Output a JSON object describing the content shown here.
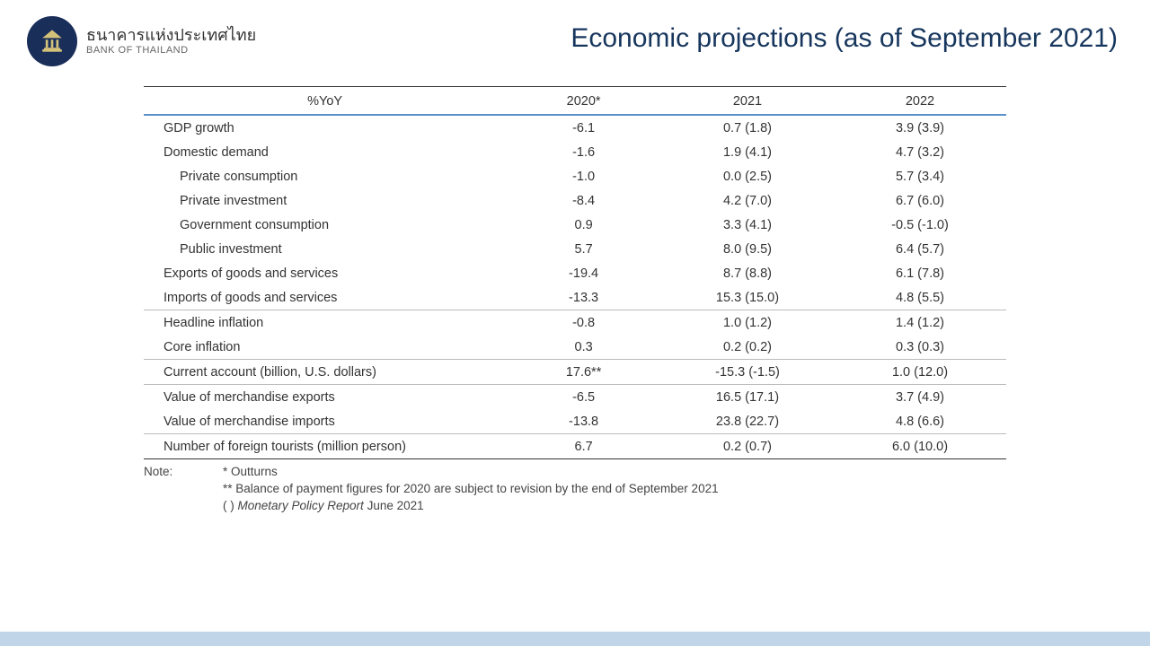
{
  "header": {
    "bank_th": "ธนาคารแห่งประเทศไทย",
    "bank_en": "BANK OF THAILAND",
    "title": "Economic projections (as of September 2021)"
  },
  "table": {
    "columns": [
      "%YoY",
      "2020*",
      "2021",
      "2022"
    ],
    "col_widths_pct": [
      42,
      18,
      20,
      20
    ],
    "header_top_border": "#333333",
    "header_accent_border": "#5a8fc7",
    "row_border": "#bbbbbb",
    "fontsize": 14.5,
    "rows": [
      {
        "label": "GDP growth",
        "indent": 1,
        "c2020": "-6.1",
        "c2021": "0.7  (1.8)",
        "c2022": "3.9  (3.9)",
        "border": false
      },
      {
        "label": "Domestic demand",
        "indent": 1,
        "c2020": "-1.6",
        "c2021": "1.9  (4.1)",
        "c2022": "4.7  (3.2)",
        "border": false
      },
      {
        "label": "Private consumption",
        "indent": 2,
        "c2020": "-1.0",
        "c2021": "0.0  (2.5)",
        "c2022": "5.7  (3.4)",
        "border": false
      },
      {
        "label": "Private investment",
        "indent": 2,
        "c2020": "-8.4",
        "c2021": "4.2  (7.0)",
        "c2022": "6.7  (6.0)",
        "border": false
      },
      {
        "label": "Government consumption",
        "indent": 2,
        "c2020": "0.9",
        "c2021": "3.3  (4.1)",
        "c2022": "-0.5  (-1.0)",
        "border": false
      },
      {
        "label": "Public investment",
        "indent": 2,
        "c2020": "5.7",
        "c2021": "8.0  (9.5)",
        "c2022": "6.4  (5.7)",
        "border": false
      },
      {
        "label": "Exports of goods and services",
        "indent": 1,
        "c2020": "-19.4",
        "c2021": "8.7  (8.8)",
        "c2022": "6.1  (7.8)",
        "border": false
      },
      {
        "label": "Imports of goods and services",
        "indent": 1,
        "c2020": "-13.3",
        "c2021": "15.3  (15.0)",
        "c2022": "4.8  (5.5)",
        "border": true
      },
      {
        "label": "Headline inflation",
        "indent": 1,
        "c2020": "-0.8",
        "c2021": "1.0 (1.2)",
        "c2022": "1.4 (1.2)",
        "border": false
      },
      {
        "label": "Core inflation",
        "indent": 1,
        "c2020": "0.3",
        "c2021": "0.2 (0.2)",
        "c2022": "0.3 (0.3)",
        "border": true
      },
      {
        "label": "Current account (billion, U.S. dollars)",
        "indent": 1,
        "c2020": "17.6**",
        "c2021": "-15.3  (-1.5)",
        "c2022": "1.0 (12.0)",
        "border": true
      },
      {
        "label": "Value of merchandise exports",
        "indent": 1,
        "c2020": "-6.5",
        "c2021": "16.5  (17.1)",
        "c2022": "3.7  (4.9)",
        "border": false
      },
      {
        "label": "Value of merchandise imports",
        "indent": 1,
        "c2020": "-13.8",
        "c2021": "23.8  (22.7)",
        "c2022": "4.8  (6.6)",
        "border": true
      },
      {
        "label": "Number of foreign tourists (million person)",
        "indent": 1,
        "c2020": "6.7",
        "c2021": "0.2  (0.7)",
        "c2022": "6.0  (10.0)",
        "border": "last"
      }
    ]
  },
  "notes": {
    "label": "Note:",
    "lines": [
      "* Outturns",
      "** Balance of payment figures for 2020 are subject to revision by the end of September 2021",
      "( ) Monetary Policy Report June 2021"
    ]
  },
  "colors": {
    "title": "#17365d",
    "logo_bg": "#1a2e5a",
    "footer_bar": "#c0d6e8",
    "text": "#333333",
    "background": "#ffffff"
  }
}
